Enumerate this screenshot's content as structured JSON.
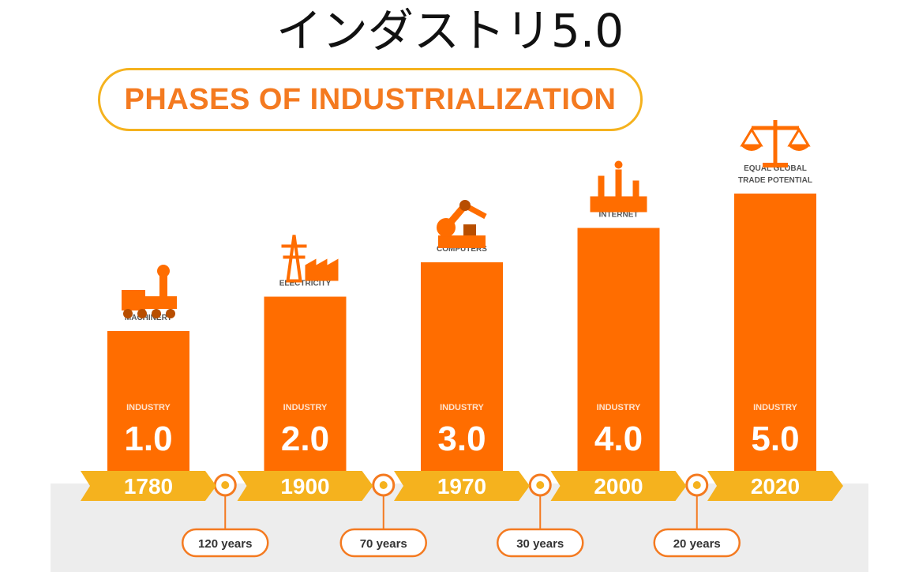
{
  "page_title": "インダストリ5.0",
  "heading": "PHASES OF INDUSTRIALIZATION",
  "colors": {
    "bar": "#FF6D00",
    "arrow": "#F5B21E",
    "pill_border": "#F5B21E",
    "heading_text": "#F47A20",
    "band": "#EDEDED",
    "connector": "#F47A20"
  },
  "chart_data": {
    "type": "bar",
    "title": "PHASES OF INDUSTRIALIZATION",
    "categories": [
      "1780",
      "1900",
      "1970",
      "2000",
      "2020"
    ],
    "values": [
      1.0,
      2.0,
      3.0,
      4.0,
      5.0
    ],
    "ylim": [
      0,
      5
    ],
    "bar_top_label": "INDUSTRY",
    "bar_values_text": [
      "1.0",
      "2.0",
      "3.0",
      "4.0",
      "5.0"
    ],
    "annotations": [
      "MACHINERY",
      "ELECTRICITY",
      "COMPUTERS",
      "INTERNET",
      "EQUAL GLOBAL\nTRADE POTENTIAL"
    ],
    "icons": [
      "steam-train-icon",
      "power-pylon-factory-icon",
      "robot-arm-icon",
      "factory-icon",
      "balance-scale-icon"
    ],
    "intervals": [
      "120 years",
      "70 years",
      "30 years",
      "20 years"
    ],
    "grid": false,
    "legend": "none"
  }
}
